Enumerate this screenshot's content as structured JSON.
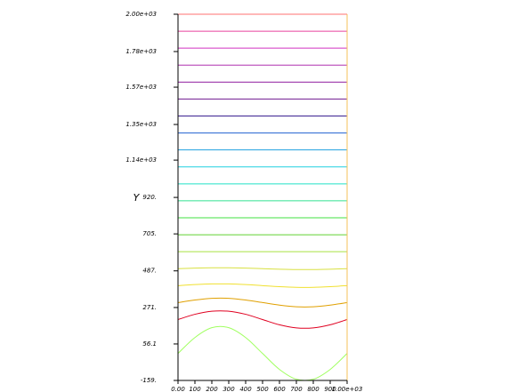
{
  "chart_data": {
    "type": "line",
    "ylabel": "Y",
    "x": [
      0,
      100,
      200,
      300,
      400,
      500,
      600,
      700,
      800,
      900,
      1000
    ],
    "xlim": [
      0,
      1000
    ],
    "xticks": [
      {
        "value": 0,
        "label": "0.00"
      },
      100,
      200,
      300,
      400,
      500,
      600,
      700,
      800,
      900,
      {
        "value": 1000,
        "label": "1.00e+03"
      }
    ],
    "ylim": [
      -159,
      2000
    ],
    "yticks": [
      {
        "value": -159,
        "label": "-159."
      },
      56.1,
      {
        "value": 271,
        "label": "271."
      },
      {
        "value": 487,
        "label": "487."
      },
      {
        "value": 705,
        "label": "705."
      },
      {
        "value": 920,
        "label": "920."
      },
      {
        "value": 1140,
        "label": "1.14e+03"
      },
      {
        "value": 1350,
        "label": "1.35e+03"
      },
      {
        "value": 1570,
        "label": "1.57e+03"
      },
      {
        "value": 1780,
        "label": "1.78e+03"
      },
      {
        "value": 2000,
        "label": "2.00e+03"
      }
    ],
    "border_color": "#f5c15a",
    "series": [
      {
        "color": "#ff7070",
        "values": [
          2000,
          2000,
          2000,
          2000,
          2000,
          2000,
          2000,
          2000,
          2000,
          2000,
          2000
        ]
      },
      {
        "color": "#e8409c",
        "values": [
          1900,
          1900,
          1900,
          1900,
          1900,
          1900,
          1900,
          1900,
          1900,
          1900,
          1900
        ]
      },
      {
        "color": "#d030c0",
        "values": [
          1800,
          1800,
          1800,
          1800,
          1800,
          1800,
          1800,
          1800,
          1800,
          1800,
          1800
        ]
      },
      {
        "color": "#b030b0",
        "values": [
          1700,
          1700,
          1700,
          1700,
          1700,
          1700,
          1700,
          1700,
          1700,
          1700,
          1700
        ]
      },
      {
        "color": "#9020a0",
        "values": [
          1600,
          1600,
          1600,
          1600,
          1600,
          1600,
          1600,
          1600,
          1600,
          1600,
          1600
        ]
      },
      {
        "color": "#701890",
        "values": [
          1500,
          1500,
          1500,
          1500,
          1500,
          1500,
          1500,
          1500,
          1500,
          1500,
          1500
        ]
      },
      {
        "color": "#3a2090",
        "values": [
          1400,
          1400,
          1400,
          1400,
          1400,
          1400,
          1400,
          1400,
          1400,
          1400,
          1400
        ]
      },
      {
        "color": "#2060d0",
        "values": [
          1300,
          1300,
          1300,
          1300,
          1300,
          1300,
          1300,
          1300,
          1300,
          1300,
          1300
        ]
      },
      {
        "color": "#20a0e0",
        "values": [
          1200,
          1200,
          1200,
          1200,
          1200,
          1200,
          1200,
          1200,
          1200,
          1200,
          1200
        ]
      },
      {
        "color": "#20d0e0",
        "values": [
          1100,
          1100,
          1100,
          1100,
          1100,
          1100,
          1100,
          1100,
          1100,
          1100,
          1100
        ]
      },
      {
        "color": "#20e0c8",
        "values": [
          1000,
          1000,
          1000,
          1000,
          1000,
          1000,
          1000,
          1000,
          1000,
          1000,
          1000
        ]
      },
      {
        "color": "#30e090",
        "values": [
          900,
          900,
          900,
          900,
          900,
          900,
          900,
          900,
          900,
          900,
          900
        ]
      },
      {
        "color": "#40e040",
        "values": [
          800,
          800,
          800,
          800,
          800,
          800,
          800,
          800,
          800,
          800,
          800
        ]
      },
      {
        "color": "#60d030",
        "values": [
          700,
          700,
          700,
          700,
          700,
          700,
          700,
          700,
          700,
          700,
          700
        ]
      },
      {
        "color": "#a8e040",
        "values": [
          600,
          600,
          600,
          600,
          600,
          600,
          600,
          600,
          600,
          600,
          600
        ]
      },
      {
        "color": "#d8e040",
        "values": [
          500,
          503,
          505,
          505,
          503,
          500,
          497,
          495,
          495,
          497,
          500
        ]
      },
      {
        "color": "#f0e030",
        "values": [
          400,
          406,
          410,
          410,
          406,
          400,
          394,
          390,
          390,
          394,
          400
        ]
      },
      {
        "color": "#e0a000",
        "values": [
          300,
          315,
          325,
          325,
          315,
          300,
          285,
          275,
          275,
          285,
          300
        ]
      },
      {
        "color": "#e00020",
        "values": [
          200,
          231,
          249,
          249,
          231,
          200,
          169,
          151,
          151,
          169,
          200
        ]
      },
      {
        "color": "#a0ff60",
        "values": [
          0,
          94,
          152,
          152,
          94,
          0,
          -94,
          -152,
          -152,
          -94,
          0
        ]
      }
    ]
  }
}
